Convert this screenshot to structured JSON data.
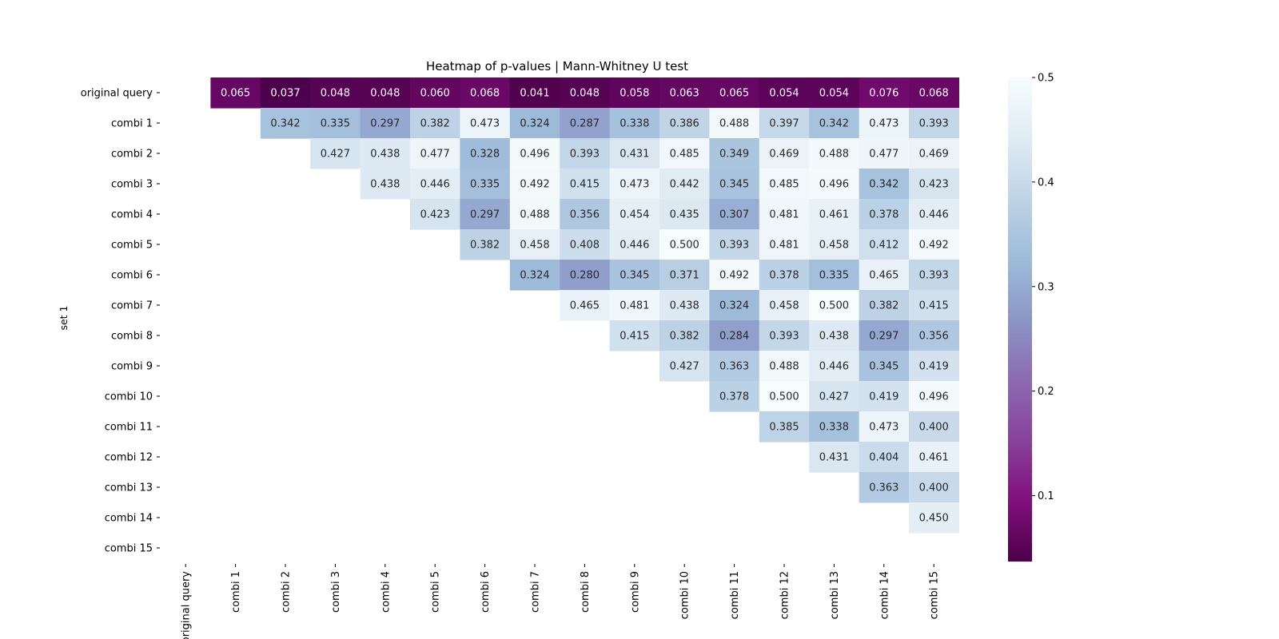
{
  "chart_data": {
    "type": "heatmap",
    "title": "Heatmap of p-values | Mann-Whitney U test",
    "xlabel": "",
    "ylabel": "set 1",
    "x_labels": [
      "original query",
      "combi 1",
      "combi 2",
      "combi 3",
      "combi 4",
      "combi 5",
      "combi 6",
      "combi 7",
      "combi 8",
      "combi 9",
      "combi 10",
      "combi 11",
      "combi 12",
      "combi 13",
      "combi 14",
      "combi 15"
    ],
    "y_labels": [
      "original query",
      "combi 1",
      "combi 2",
      "combi 3",
      "combi 4",
      "combi 5",
      "combi 6",
      "combi 7",
      "combi 8",
      "combi 9",
      "combi 10",
      "combi 11",
      "combi 12",
      "combi 13",
      "combi 14",
      "combi 15"
    ],
    "values": [
      [
        null,
        0.065,
        0.037,
        0.048,
        0.048,
        0.06,
        0.068,
        0.041,
        0.048,
        0.058,
        0.063,
        0.065,
        0.054,
        0.054,
        0.076,
        0.068
      ],
      [
        null,
        null,
        0.342,
        0.335,
        0.297,
        0.382,
        0.473,
        0.324,
        0.287,
        0.338,
        0.386,
        0.488,
        0.397,
        0.342,
        0.473,
        0.393
      ],
      [
        null,
        null,
        null,
        0.427,
        0.438,
        0.477,
        0.328,
        0.496,
        0.393,
        0.431,
        0.485,
        0.349,
        0.469,
        0.488,
        0.477,
        0.469
      ],
      [
        null,
        null,
        null,
        null,
        0.438,
        0.446,
        0.335,
        0.492,
        0.415,
        0.473,
        0.442,
        0.345,
        0.485,
        0.496,
        0.342,
        0.423
      ],
      [
        null,
        null,
        null,
        null,
        null,
        0.423,
        0.297,
        0.488,
        0.356,
        0.454,
        0.435,
        0.307,
        0.481,
        0.461,
        0.378,
        0.446
      ],
      [
        null,
        null,
        null,
        null,
        null,
        null,
        0.382,
        0.458,
        0.408,
        0.446,
        0.5,
        0.393,
        0.481,
        0.458,
        0.412,
        0.492
      ],
      [
        null,
        null,
        null,
        null,
        null,
        null,
        null,
        0.324,
        0.28,
        0.345,
        0.371,
        0.492,
        0.378,
        0.335,
        0.465,
        0.393
      ],
      [
        null,
        null,
        null,
        null,
        null,
        null,
        null,
        null,
        0.465,
        0.481,
        0.438,
        0.324,
        0.458,
        0.5,
        0.382,
        0.415
      ],
      [
        null,
        null,
        null,
        null,
        null,
        null,
        null,
        null,
        null,
        0.415,
        0.382,
        0.284,
        0.393,
        0.438,
        0.297,
        0.356
      ],
      [
        null,
        null,
        null,
        null,
        null,
        null,
        null,
        null,
        null,
        null,
        0.427,
        0.363,
        0.488,
        0.446,
        0.345,
        0.419
      ],
      [
        null,
        null,
        null,
        null,
        null,
        null,
        null,
        null,
        null,
        null,
        null,
        0.378,
        0.5,
        0.427,
        0.419,
        0.496
      ],
      [
        null,
        null,
        null,
        null,
        null,
        null,
        null,
        null,
        null,
        null,
        null,
        null,
        0.385,
        0.338,
        0.473,
        0.4
      ],
      [
        null,
        null,
        null,
        null,
        null,
        null,
        null,
        null,
        null,
        null,
        null,
        null,
        null,
        0.431,
        0.404,
        0.461
      ],
      [
        null,
        null,
        null,
        null,
        null,
        null,
        null,
        null,
        null,
        null,
        null,
        null,
        null,
        null,
        0.363,
        0.4
      ],
      [
        null,
        null,
        null,
        null,
        null,
        null,
        null,
        null,
        null,
        null,
        null,
        null,
        null,
        null,
        null,
        0.45
      ],
      [
        null,
        null,
        null,
        null,
        null,
        null,
        null,
        null,
        null,
        null,
        null,
        null,
        null,
        null,
        null,
        null
      ]
    ],
    "value_format_decimals": 3,
    "colormap": "BuPu_r",
    "colormap_stops": [
      "#4d004b",
      "#810f7c",
      "#88419d",
      "#8c6bb1",
      "#8c96c6",
      "#9ebcda",
      "#bfd3e6",
      "#e0ecf4",
      "#f7fcfd"
    ],
    "colorbar": {
      "range": [
        0.037,
        0.5
      ],
      "ticks": [
        0.1,
        0.2,
        0.3,
        0.4,
        0.5
      ],
      "tick_labels": [
        "0.1",
        "0.2",
        "0.3",
        "0.4",
        "0.5"
      ]
    },
    "grid": false,
    "legend": "colorbar-right"
  }
}
